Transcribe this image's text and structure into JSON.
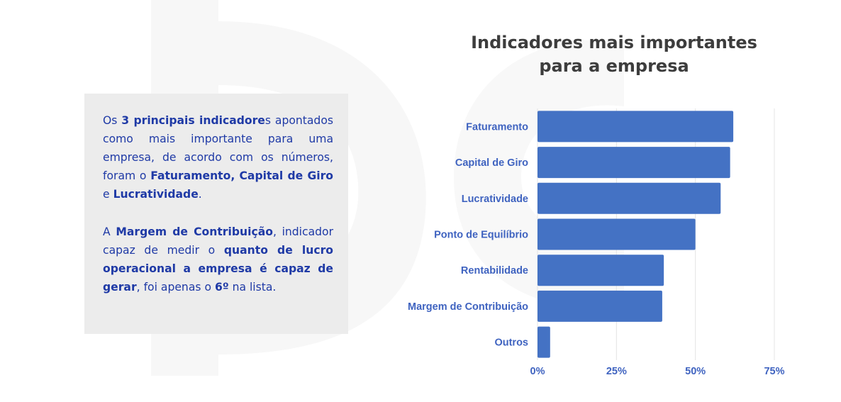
{
  "info_box": {
    "p1": {
      "t1": "Os ",
      "b1": "3 principais indicadore",
      "t2": "s apontados como mais importante para uma empresa, de acordo com os números, foram o ",
      "b2": "Faturamento, Capital de Giro",
      "t3": " e ",
      "b3": "Lucratividade",
      "t4": "."
    },
    "p2": {
      "t1": "A ",
      "b1": "Margem de Contribuição",
      "t2": ", indicador capaz de medir o ",
      "b2": "quanto de lucro operacional a empresa é capaz de gerar",
      "t3": ", foi apenas o ",
      "b3": "6º",
      "t4": " na lista."
    }
  },
  "chart_data": {
    "type": "bar",
    "orientation": "horizontal",
    "title": [
      "Indicadores mais importantes",
      "para a empresa"
    ],
    "categories": [
      "Faturamento",
      "Capital de Giro",
      "Lucratividade",
      "Ponto de Equilíbrio",
      "Rentabilidade",
      "Margem de Contribuição",
      "Outros"
    ],
    "values": [
      62,
      61,
      58,
      50,
      40,
      39.5,
      4
    ],
    "x_ticks": [
      "0%",
      "25%",
      "50%",
      "75%"
    ],
    "xlim": [
      0,
      75
    ],
    "grid": true,
    "bar_color": "#4472c4",
    "label_color": "#3f63c0"
  }
}
